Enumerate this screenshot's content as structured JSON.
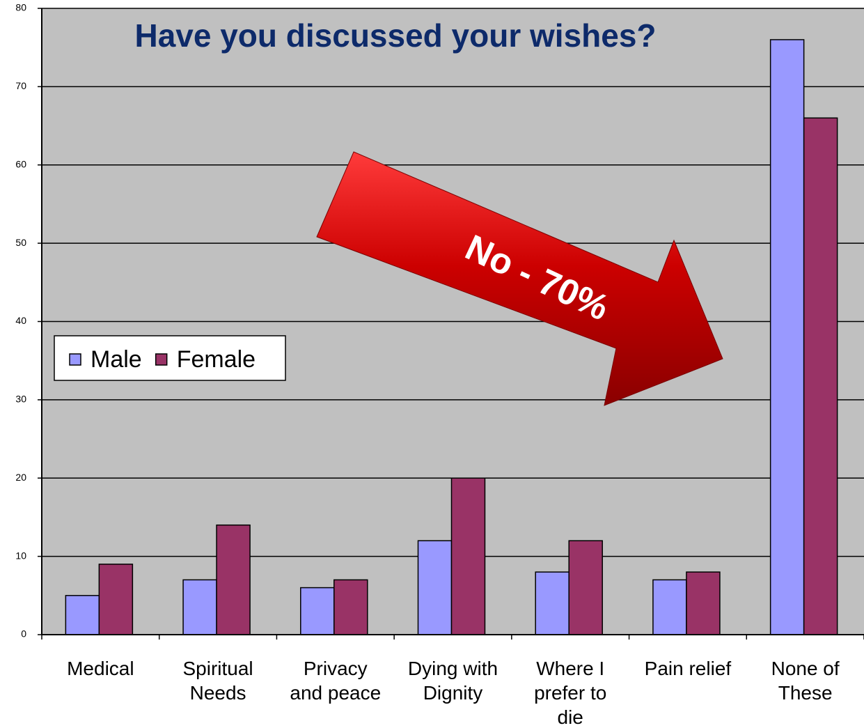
{
  "chart_data": {
    "type": "bar",
    "title": "Have you discussed your wishes?",
    "annotation": "No - 70%",
    "categories": [
      "Medical",
      "Spiritual\nNeeds",
      "Privacy\nand peace",
      "Dying with\nDignity",
      "Where I\nprefer to\ndie",
      "Pain relief",
      "None of\nThese"
    ],
    "series": [
      {
        "name": "Male",
        "color": "#9999ff",
        "values": [
          5,
          7,
          6,
          12,
          8,
          7,
          76
        ]
      },
      {
        "name": "Female",
        "color": "#993366",
        "values": [
          9,
          14,
          7,
          20,
          12,
          8,
          66
        ]
      }
    ],
    "ylim": [
      0,
      80
    ],
    "yticks": [
      0,
      10,
      20,
      30,
      40,
      50,
      60,
      70,
      80
    ],
    "grid": true
  }
}
